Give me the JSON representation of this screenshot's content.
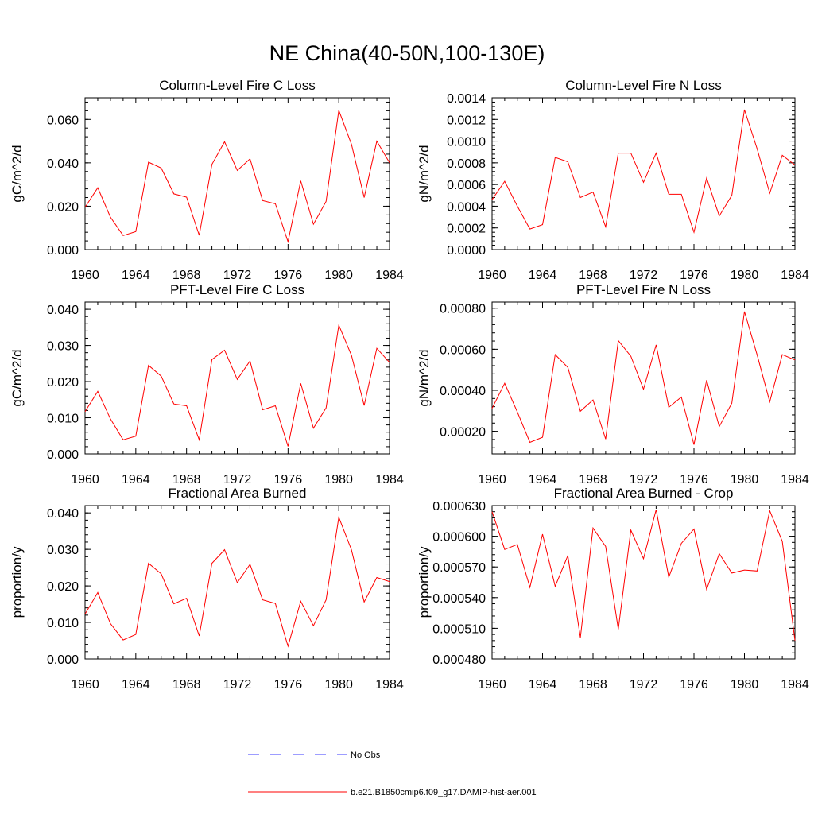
{
  "title": "NE China(40-50N,100-130E)",
  "legend": {
    "obs_label": "No Obs",
    "model_label": "b.e21.B1850cmip6.f09_g17.DAMIP-hist-aer.001",
    "obs_color": "#3b3bff",
    "model_color": "#ff0000"
  },
  "chart_data": [
    {
      "type": "line",
      "title": "Column-Level Fire C Loss",
      "ylabel": "gC/m^2/d",
      "xlim": [
        1960,
        1984
      ],
      "ylim": [
        0.0,
        0.07
      ],
      "x_ticks": [
        "1960",
        "1964",
        "1968",
        "1972",
        "1976",
        "1980",
        "1984"
      ],
      "y_ticks": [
        "0.000",
        "0.020",
        "0.040",
        "0.060"
      ],
      "series": [
        {
          "name": "b.e21.B1850cmip6.f09_g17.DAMIP-hist-aer.001",
          "x": [
            1960,
            1961,
            1962,
            1963,
            1964,
            1965,
            1966,
            1967,
            1968,
            1969,
            1970,
            1971,
            1972,
            1973,
            1974,
            1975,
            1976,
            1977,
            1978,
            1979,
            1980,
            1981,
            1982,
            1983,
            1984
          ],
          "values": [
            0.0195,
            0.0285,
            0.015,
            0.0065,
            0.0083,
            0.0403,
            0.0376,
            0.0257,
            0.0242,
            0.0066,
            0.0393,
            0.0497,
            0.0365,
            0.0418,
            0.0226,
            0.0211,
            0.0036,
            0.0317,
            0.0117,
            0.0222,
            0.0642,
            0.0486,
            0.024,
            0.05,
            0.0401
          ]
        }
      ]
    },
    {
      "type": "line",
      "title": "Column-Level Fire N Loss",
      "ylabel": "gN/m^2/d",
      "xlim": [
        1960,
        1984
      ],
      "ylim": [
        0.0,
        0.0014
      ],
      "x_ticks": [
        "1960",
        "1964",
        "1968",
        "1972",
        "1976",
        "1980",
        "1984"
      ],
      "y_ticks": [
        "0.0000",
        "0.0002",
        "0.0004",
        "0.0006",
        "0.0008",
        "0.0010",
        "0.0012",
        "0.0014"
      ],
      "series": [
        {
          "name": "b.e21.B1850cmip6.f09_g17.DAMIP-hist-aer.001",
          "x": [
            1960,
            1961,
            1962,
            1963,
            1964,
            1965,
            1966,
            1967,
            1968,
            1969,
            1970,
            1971,
            1972,
            1973,
            1974,
            1975,
            1976,
            1977,
            1978,
            1979,
            1980,
            1981,
            1982,
            1983,
            1984
          ],
          "values": [
            0.00046,
            0.00063,
            0.0004,
            0.00019,
            0.00023,
            0.00085,
            0.00081,
            0.00048,
            0.00053,
            0.00021,
            0.00089,
            0.00089,
            0.00062,
            0.00089,
            0.00051,
            0.00051,
            0.00016,
            0.00066,
            0.00031,
            0.0005,
            0.00129,
            0.00093,
            0.00052,
            0.00087,
            0.00078
          ]
        }
      ]
    },
    {
      "type": "line",
      "title": "PFT-Level Fire C Loss",
      "ylabel": "gC/m^2/d",
      "xlim": [
        1960,
        1984
      ],
      "ylim": [
        0.0,
        0.042
      ],
      "x_ticks": [
        "1960",
        "1964",
        "1968",
        "1972",
        "1976",
        "1980",
        "1984"
      ],
      "y_ticks": [
        "0.000",
        "0.010",
        "0.020",
        "0.030",
        "0.040"
      ],
      "series": [
        {
          "name": "b.e21.B1850cmip6.f09_g17.DAMIP-hist-aer.001",
          "x": [
            1960,
            1961,
            1962,
            1963,
            1964,
            1965,
            1966,
            1967,
            1968,
            1969,
            1970,
            1971,
            1972,
            1973,
            1974,
            1975,
            1976,
            1977,
            1978,
            1979,
            1980,
            1981,
            1982,
            1983,
            1984
          ],
          "values": [
            0.0117,
            0.0173,
            0.0097,
            0.0039,
            0.0049,
            0.0245,
            0.0215,
            0.0138,
            0.0133,
            0.0039,
            0.0261,
            0.0287,
            0.0206,
            0.0257,
            0.0122,
            0.0133,
            0.0021,
            0.0195,
            0.0071,
            0.0127,
            0.0356,
            0.0273,
            0.0134,
            0.0292,
            0.0253
          ]
        }
      ]
    },
    {
      "type": "line",
      "title": "PFT-Level Fire N Loss",
      "ylabel": "gN/m^2/d",
      "xlim": [
        1960,
        1984
      ],
      "ylim": [
        9e-05,
        0.00083
      ],
      "x_ticks": [
        "1960",
        "1964",
        "1968",
        "1972",
        "1976",
        "1980",
        "1984"
      ],
      "y_ticks": [
        "0.00020",
        "0.00040",
        "0.00060",
        "0.00080"
      ],
      "series": [
        {
          "name": "b.e21.B1850cmip6.f09_g17.DAMIP-hist-aer.001",
          "x": [
            1960,
            1961,
            1962,
            1963,
            1964,
            1965,
            1966,
            1967,
            1968,
            1969,
            1970,
            1971,
            1972,
            1973,
            1974,
            1975,
            1976,
            1977,
            1978,
            1979,
            1980,
            1981,
            1982,
            1983,
            1984
          ],
          "values": [
            0.000312,
            0.000434,
            0.000294,
            0.000146,
            0.000171,
            0.000574,
            0.000512,
            0.000298,
            0.000353,
            0.000162,
            0.000642,
            0.000566,
            0.000405,
            0.000621,
            0.000317,
            0.000367,
            0.000135,
            0.000449,
            0.000223,
            0.000337,
            0.000784,
            0.000573,
            0.000344,
            0.000574,
            0.000548
          ]
        }
      ]
    },
    {
      "type": "line",
      "title": "Fractional Area Burned",
      "ylabel": "proportion/y",
      "xlim": [
        1960,
        1984
      ],
      "ylim": [
        0.0,
        0.042
      ],
      "x_ticks": [
        "1960",
        "1964",
        "1968",
        "1972",
        "1976",
        "1980",
        "1984"
      ],
      "y_ticks": [
        "0.000",
        "0.010",
        "0.020",
        "0.030",
        "0.040"
      ],
      "series": [
        {
          "name": "b.e21.B1850cmip6.f09_g17.DAMIP-hist-aer.001",
          "x": [
            1960,
            1961,
            1962,
            1963,
            1964,
            1965,
            1966,
            1967,
            1968,
            1969,
            1970,
            1971,
            1972,
            1973,
            1974,
            1975,
            1976,
            1977,
            1978,
            1979,
            1980,
            1981,
            1982,
            1983,
            1984
          ],
          "values": [
            0.0123,
            0.0182,
            0.0097,
            0.0052,
            0.0067,
            0.0262,
            0.0233,
            0.0151,
            0.0166,
            0.0063,
            0.0262,
            0.0299,
            0.0209,
            0.0259,
            0.0162,
            0.0152,
            0.0035,
            0.0158,
            0.0091,
            0.0162,
            0.0388,
            0.0299,
            0.0156,
            0.0223,
            0.0212
          ]
        }
      ]
    },
    {
      "type": "line",
      "title": "Fractional Area Burned - Crop",
      "ylabel": "proportion/y",
      "xlim": [
        1960,
        1984
      ],
      "ylim": [
        0.00048,
        0.00063
      ],
      "x_ticks": [
        "1960",
        "1964",
        "1968",
        "1972",
        "1976",
        "1980",
        "1984"
      ],
      "y_ticks": [
        "0.000480",
        "0.000510",
        "0.000540",
        "0.000570",
        "0.000600",
        "0.000630"
      ],
      "series": [
        {
          "name": "b.e21.B1850cmip6.f09_g17.DAMIP-hist-aer.001",
          "x": [
            1960,
            1961,
            1962,
            1963,
            1964,
            1965,
            1966,
            1967,
            1968,
            1969,
            1970,
            1971,
            1972,
            1973,
            1974,
            1975,
            1976,
            1977,
            1978,
            1979,
            1980,
            1981,
            1982,
            1983,
            1984
          ],
          "values": [
            0.000624,
            0.000587,
            0.000592,
            0.00055,
            0.000602,
            0.000551,
            0.000581,
            0.000501,
            0.000608,
            0.00059,
            0.000509,
            0.000606,
            0.000578,
            0.000626,
            0.00056,
            0.000593,
            0.000607,
            0.000548,
            0.000583,
            0.000564,
            0.000567,
            0.000566,
            0.000625,
            0.000595,
            0.000498
          ]
        }
      ]
    }
  ]
}
